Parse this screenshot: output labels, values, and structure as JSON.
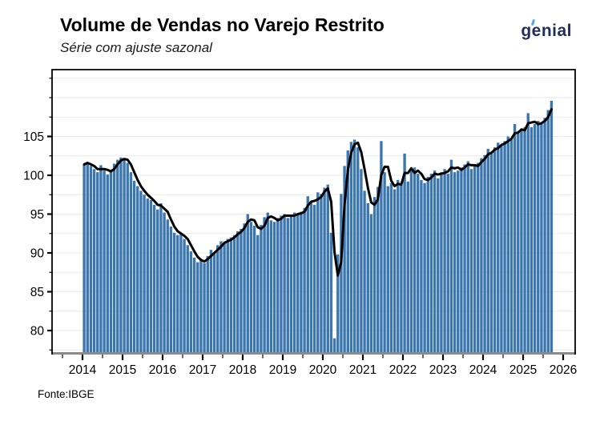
{
  "header": {
    "title": "Volume de Vendas no Varejo Restrito",
    "subtitle": "Série com ajuste sazonal",
    "logo_text": "genial"
  },
  "footer": {
    "source": "Fonte:IBGE"
  },
  "colors": {
    "bar": "#3B76AF",
    "line": "#000000",
    "grid": "#E9E9E9",
    "axis": "#000000",
    "baseline": "#8A8A8A",
    "logo_navy": "#232D5C",
    "logo_accent": "#53A7DC",
    "background": "#FFFFFF"
  },
  "chart_data": {
    "type": "bar",
    "title": "Volume de Vendas no Varejo Restrito",
    "subtitle": "Série com ajuste sazonal",
    "source": "Fonte:IBGE",
    "frequency": "monthly",
    "first_month": "2014-01",
    "last_month": "2025-09",
    "x_tick_labels": [
      "2014",
      "2015",
      "2016",
      "2017",
      "2018",
      "2019",
      "2020",
      "2021",
      "2022",
      "2023",
      "2024",
      "2025",
      "2026"
    ],
    "y_tick_labels": [
      "80",
      "85",
      "90",
      "95",
      "100",
      "105"
    ],
    "y_major_ticks": [
      80,
      85,
      90,
      95,
      100,
      105
    ],
    "y_minor_step": 2.5,
    "ylim": [
      76.9,
      113.6
    ],
    "grid": "horizontal-light",
    "legend": "none",
    "series": [
      {
        "name": "monthly_index",
        "type": "bar",
        "values": [
          101.4,
          101.7,
          101.2,
          100.8,
          100.4,
          101.3,
          100.6,
          100.1,
          100.7,
          101.5,
          102.0,
          102.3,
          102.1,
          101.6,
          100.4,
          99.3,
          98.6,
          98.0,
          97.5,
          97.0,
          96.8,
          96.2,
          95.6,
          96.4,
          95.2,
          94.3,
          93.4,
          92.6,
          92.3,
          92.5,
          91.8,
          91.0,
          90.2,
          89.4,
          88.8,
          89.2,
          88.7,
          89.6,
          90.4,
          89.9,
          91.0,
          91.5,
          91.3,
          91.8,
          92.0,
          92.3,
          92.8,
          93.1,
          93.8,
          95.0,
          94.0,
          93.5,
          92.3,
          93.6,
          94.6,
          95.2,
          94.2,
          94.0,
          94.5,
          94.8,
          95.0,
          94.5,
          94.8,
          95.2,
          94.9,
          95.3,
          95.8,
          97.3,
          96.6,
          96.2,
          97.8,
          97.6,
          98.4,
          98.8,
          92.6,
          79.0,
          89.8,
          97.6,
          101.2,
          103.2,
          104.3,
          104.6,
          103.6,
          100.8,
          98.0,
          96.4,
          95.0,
          97.2,
          98.5,
          104.4,
          100.4,
          98.6,
          99.0,
          98.2,
          99.4,
          98.8,
          102.8,
          99.2,
          100.6,
          101.0,
          100.2,
          99.4,
          99.0,
          99.8,
          100.2,
          100.6,
          99.6,
          100.4,
          100.8,
          100.2,
          102.0,
          100.4,
          100.6,
          101.0,
          101.4,
          101.8,
          100.8,
          101.2,
          101.6,
          102.2,
          102.6,
          103.4,
          102.8,
          103.6,
          104.2,
          103.8,
          104.4,
          105.0,
          104.6,
          106.6,
          105.4,
          105.8,
          106.2,
          108.0,
          106.2,
          106.6,
          107.0,
          106.6,
          107.4,
          108.4,
          109.6
        ]
      },
      {
        "name": "trend_line",
        "type": "line",
        "values": [
          101.4,
          101.6,
          101.4,
          101.2,
          100.8,
          100.8,
          100.8,
          100.7,
          100.5,
          100.8,
          101.4,
          101.9,
          102.1,
          102.0,
          101.4,
          100.4,
          99.4,
          98.6,
          98.0,
          97.5,
          97.1,
          96.7,
          96.2,
          96.1,
          95.7,
          95.3,
          94.3,
          93.4,
          92.8,
          92.5,
          92.2,
          91.8,
          91.0,
          90.2,
          89.5,
          89.1,
          88.9,
          89.2,
          89.6,
          90.0,
          90.4,
          90.8,
          91.3,
          91.5,
          91.7,
          92.0,
          92.4,
          92.7,
          93.2,
          94.0,
          94.3,
          94.2,
          93.3,
          93.1,
          93.5,
          94.5,
          94.7,
          94.5,
          94.2,
          94.4,
          94.8,
          94.8,
          94.8,
          94.8,
          95.0,
          95.1,
          95.3,
          96.1,
          96.6,
          96.7,
          96.9,
          97.2,
          97.9,
          98.3,
          96.6,
          90.1,
          87.1,
          88.8,
          96.2,
          100.7,
          102.9,
          104.0,
          104.2,
          103.0,
          100.8,
          98.4,
          96.5,
          96.2,
          96.9,
          100.0,
          101.1,
          101.1,
          99.3,
          98.6,
          98.9,
          98.8,
          100.3,
          100.3,
          100.9,
          100.3,
          100.6,
          100.2,
          99.5,
          99.4,
          99.7,
          100.2,
          100.1,
          100.2,
          100.3,
          100.5,
          101.0,
          100.9,
          101.0,
          100.7,
          101.0,
          101.4,
          101.3,
          101.3,
          101.2,
          101.7,
          102.1,
          102.7,
          102.9,
          103.3,
          103.5,
          103.9,
          104.1,
          104.4,
          104.7,
          105.4,
          105.5,
          105.9,
          105.8,
          106.7,
          106.8,
          106.9,
          106.6,
          106.7,
          107.0,
          107.5,
          108.5
        ]
      }
    ]
  }
}
